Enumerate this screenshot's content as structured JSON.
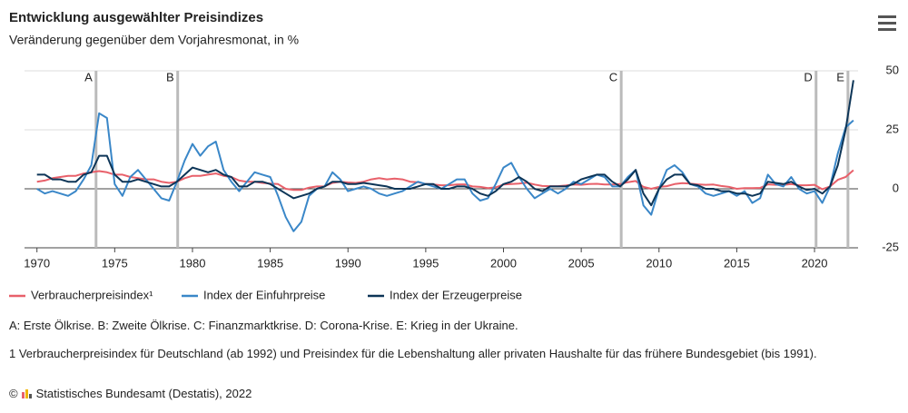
{
  "chart_data": {
    "type": "line",
    "title": "Entwicklung ausgewählter Preisindizes",
    "subtitle": "Veränderung gegenüber dem Vorjahresmonat, in %",
    "x": [
      1970,
      1970.5,
      1971,
      1971.5,
      1972,
      1972.5,
      1973,
      1973.5,
      1974,
      1974.5,
      1975,
      1975.5,
      1976,
      1976.5,
      1977,
      1977.5,
      1978,
      1978.5,
      1979,
      1979.5,
      1980,
      1980.5,
      1981,
      1981.5,
      1982,
      1982.5,
      1983,
      1983.5,
      1984,
      1984.5,
      1985,
      1985.5,
      1986,
      1986.5,
      1987,
      1987.5,
      1988,
      1988.5,
      1989,
      1989.5,
      1990,
      1990.5,
      1991,
      1991.5,
      1992,
      1992.5,
      1993,
      1993.5,
      1994,
      1994.5,
      1995,
      1995.5,
      1996,
      1996.5,
      1997,
      1997.5,
      1998,
      1998.5,
      1999,
      1999.5,
      2000,
      2000.5,
      2001,
      2001.5,
      2002,
      2002.5,
      2003,
      2003.5,
      2004,
      2004.5,
      2005,
      2005.5,
      2006,
      2006.5,
      2007,
      2007.5,
      2008,
      2008.5,
      2009,
      2009.5,
      2010,
      2010.5,
      2011,
      2011.5,
      2012,
      2012.5,
      2013,
      2013.5,
      2014,
      2014.5,
      2015,
      2015.5,
      2016,
      2016.5,
      2017,
      2017.5,
      2018,
      2018.5,
      2019,
      2019.5,
      2020,
      2020.5,
      2021,
      2021.5,
      2022,
      2022.5
    ],
    "series": [
      {
        "name": "Verbraucherpreisindex¹",
        "color": "#e8606a",
        "values": [
          3,
          3.5,
          4.5,
          5,
          5.5,
          5.5,
          6.5,
          7,
          7.5,
          7,
          6,
          6,
          5,
          4.5,
          4,
          4,
          3,
          2.5,
          3,
          4.5,
          5.5,
          5.5,
          6,
          6.5,
          5.5,
          5,
          3.5,
          3,
          3,
          2.5,
          2.2,
          2,
          0,
          -0.5,
          -0.5,
          0.5,
          1,
          1,
          2.5,
          3,
          2.7,
          2.5,
          3,
          4,
          4.5,
          4,
          4.3,
          4,
          3,
          2.8,
          2,
          1.8,
          1.5,
          1.5,
          1.8,
          1.9,
          1,
          0.8,
          0.3,
          0.6,
          1.8,
          2,
          2.2,
          2.6,
          1.8,
          1.2,
          1.1,
          1.1,
          1.4,
          1.8,
          1.7,
          2,
          2.1,
          1.8,
          1.8,
          2,
          2.8,
          3.3,
          0.8,
          0,
          0.8,
          1.1,
          2,
          2.4,
          2.2,
          1.9,
          1.7,
          1.8,
          1.2,
          0.8,
          0,
          0.3,
          0.3,
          0.4,
          1.9,
          1.7,
          1.6,
          2,
          1.5,
          1.5,
          1.7,
          -0.2,
          1,
          3.8,
          5,
          7.9
        ]
      },
      {
        "name": "Index der Einfuhrpreise",
        "color": "#3a87c8",
        "values": [
          0,
          -2,
          -1,
          -2,
          -3,
          -1,
          4,
          10,
          32,
          30,
          2,
          -3,
          5,
          8,
          4,
          0,
          -4,
          -5,
          3,
          12,
          19,
          14,
          18,
          20,
          8,
          3,
          -1,
          3,
          7,
          6,
          5,
          -3,
          -12,
          -18,
          -14,
          -3,
          0,
          1,
          7,
          4,
          -1,
          0,
          1,
          0,
          -2,
          -3,
          -2,
          -1,
          1,
          3,
          2,
          1,
          0,
          2,
          4,
          4,
          -2,
          -5,
          -4,
          2,
          9,
          11,
          5,
          0,
          -4,
          -2,
          0,
          -2,
          0,
          3,
          2,
          4,
          6,
          5,
          1,
          1,
          5,
          8,
          -7,
          -11,
          0,
          8,
          10,
          7,
          2,
          1,
          -2,
          -3,
          -2,
          -1,
          -3,
          -1,
          -6,
          -4,
          6,
          2,
          1,
          5,
          0,
          -2,
          -1,
          -6,
          1,
          15,
          26,
          29
        ]
      },
      {
        "name": "Index der Erzeugerpreise",
        "color": "#0d3557",
        "values": [
          6,
          6,
          4,
          4,
          3,
          3,
          6,
          7,
          14,
          14,
          6,
          3,
          3,
          4,
          3,
          2,
          1,
          1,
          3,
          6,
          9,
          8,
          7,
          8,
          6,
          5,
          1,
          1,
          3,
          3,
          2,
          0,
          -2,
          -4,
          -3,
          -2,
          0,
          1,
          3,
          3,
          2,
          2,
          2.5,
          2,
          1.5,
          1,
          0,
          0,
          0,
          1,
          2,
          2,
          0,
          0,
          1,
          1,
          0,
          -2,
          -3,
          -1,
          2,
          3,
          5,
          3,
          0,
          -1,
          1,
          1,
          1,
          2,
          4,
          5,
          6,
          6,
          3,
          1,
          4,
          8,
          -2,
          -7,
          0,
          4,
          6,
          6,
          2,
          1.5,
          0,
          0,
          -1,
          -1,
          -2,
          -2,
          -3,
          -2,
          3,
          2.5,
          2,
          3,
          1,
          -0.5,
          0,
          -2,
          1,
          10,
          25,
          46
        ]
      }
    ],
    "annotations": [
      {
        "label": "A",
        "x": 1973.8
      },
      {
        "label": "B",
        "x": 1979.05
      },
      {
        "label": "C",
        "x": 2007.57
      },
      {
        "label": "D",
        "x": 2020.1
      },
      {
        "label": "E",
        "x": 2022.15
      }
    ],
    "xlim": [
      1969.2,
      2022.8
    ],
    "xticks": [
      1970,
      1975,
      1980,
      1985,
      1990,
      1995,
      2000,
      2005,
      2010,
      2015,
      2020
    ],
    "ylim": [
      -25,
      50
    ],
    "yticks": [
      -25,
      0,
      25,
      50
    ],
    "grid": true,
    "legend": "bottom",
    "notes": "A: Erste Ölkrise. B: Zweite Ölkrise. C: Finanzmarktkrise. D: Corona-Krise. E: Krieg in der Ukraine.",
    "footnote": "1 Verbraucherpreisindex für Deutschland (ab 1992) und Preisindex für die Lebenshaltung aller privaten Haushalte für das frühere Bundesgebiet (bis 1991).",
    "source": "Statistisches Bundesamt (Destatis), 2022"
  }
}
